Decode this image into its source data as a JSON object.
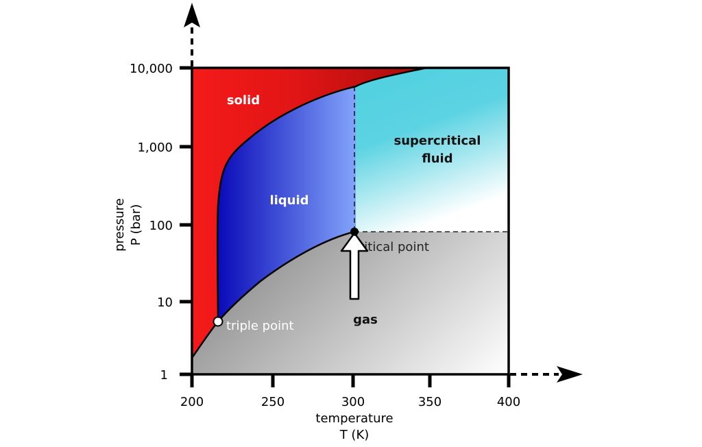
{
  "diagram": {
    "x_axis": {
      "title_line1": "temperature",
      "title_line2": "T (K)",
      "ticks": [
        "200",
        "250",
        "300",
        "350",
        "400"
      ]
    },
    "y_axis": {
      "title_line1": "pressure",
      "title_line2": "P (bar)",
      "ticks": [
        "1",
        "10",
        "100",
        "1,000",
        "10,000"
      ]
    },
    "regions": {
      "solid": "solid",
      "liquid": "liquid",
      "supercritical_line1": "supercritical",
      "supercritical_line2": "fluid",
      "gas": "gas"
    },
    "points": {
      "triple": "triple point",
      "critical": "critical point"
    },
    "colors": {
      "solid_light": "#f51a1a",
      "solid_dark": "#b30f0f",
      "liquid_dark": "#1414c0",
      "liquid_light": "#7fa0f8",
      "supercritical": "#4fd0e0",
      "gas_dark": "#6e6e6e",
      "gas_light": "#ffffff"
    }
  }
}
